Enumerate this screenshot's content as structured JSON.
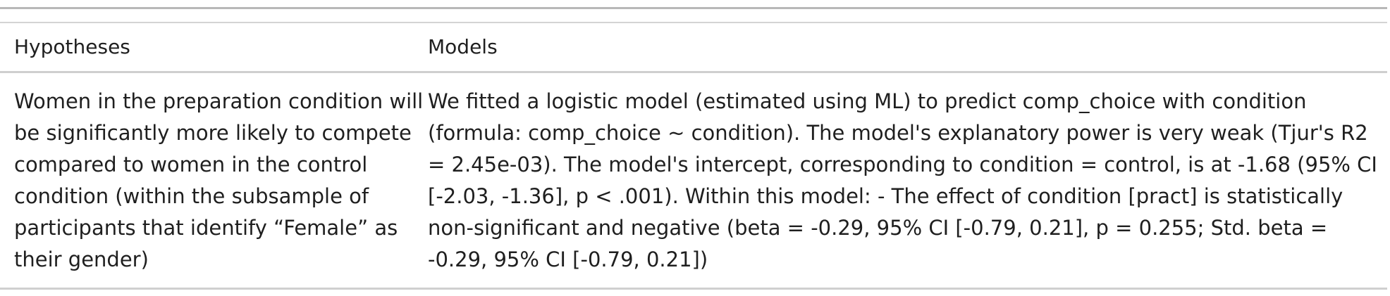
{
  "table": {
    "headers": [
      "Hypotheses",
      "Models"
    ],
    "rows": [
      {
        "hypothesis": "Women in the preparation condition will be significantly more likely to compete compared to women in the control condition (within the subsample of participants that identify “Female” as their gender)",
        "model": "We fitted a logistic model (estimated using ML) to predict comp_choice with condition (formula: comp_choice ~ condition). The model's explanatory power is very weak (Tjur's R2 = 2.45e-03). The model's intercept, corresponding to condition = control, is at -1.68 (95% CI [-2.03, -1.36], p < .001). Within this model: - The effect of condition [pract] is statistically non-significant and negative (beta = -0.29, 95% CI [-0.79, 0.21], p = 0.255; Std. beta = -0.29, 95% CI [-0.79, 0.21])"
      }
    ]
  }
}
